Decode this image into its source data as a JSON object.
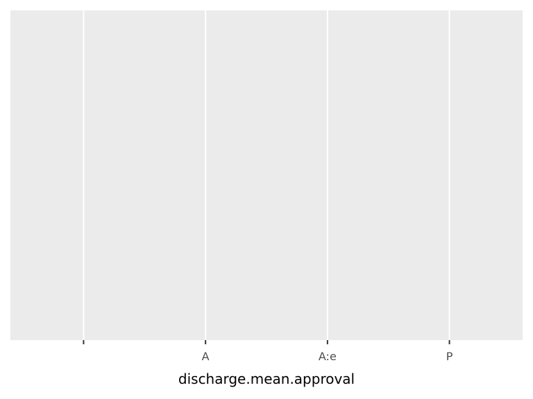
{
  "chart_data": {
    "type": "bar",
    "categories": [
      "",
      "A",
      "A:e",
      "P"
    ],
    "series": [],
    "title": "",
    "xlabel": "discharge.mean.approval",
    "ylabel": "",
    "grid": true,
    "legend": "none",
    "colors": {
      "panel_background": "#ebebeb",
      "gridline": "#ffffff",
      "tick": "#333333",
      "tick_label": "#4d4d4d",
      "axis_title": "#000000"
    }
  }
}
